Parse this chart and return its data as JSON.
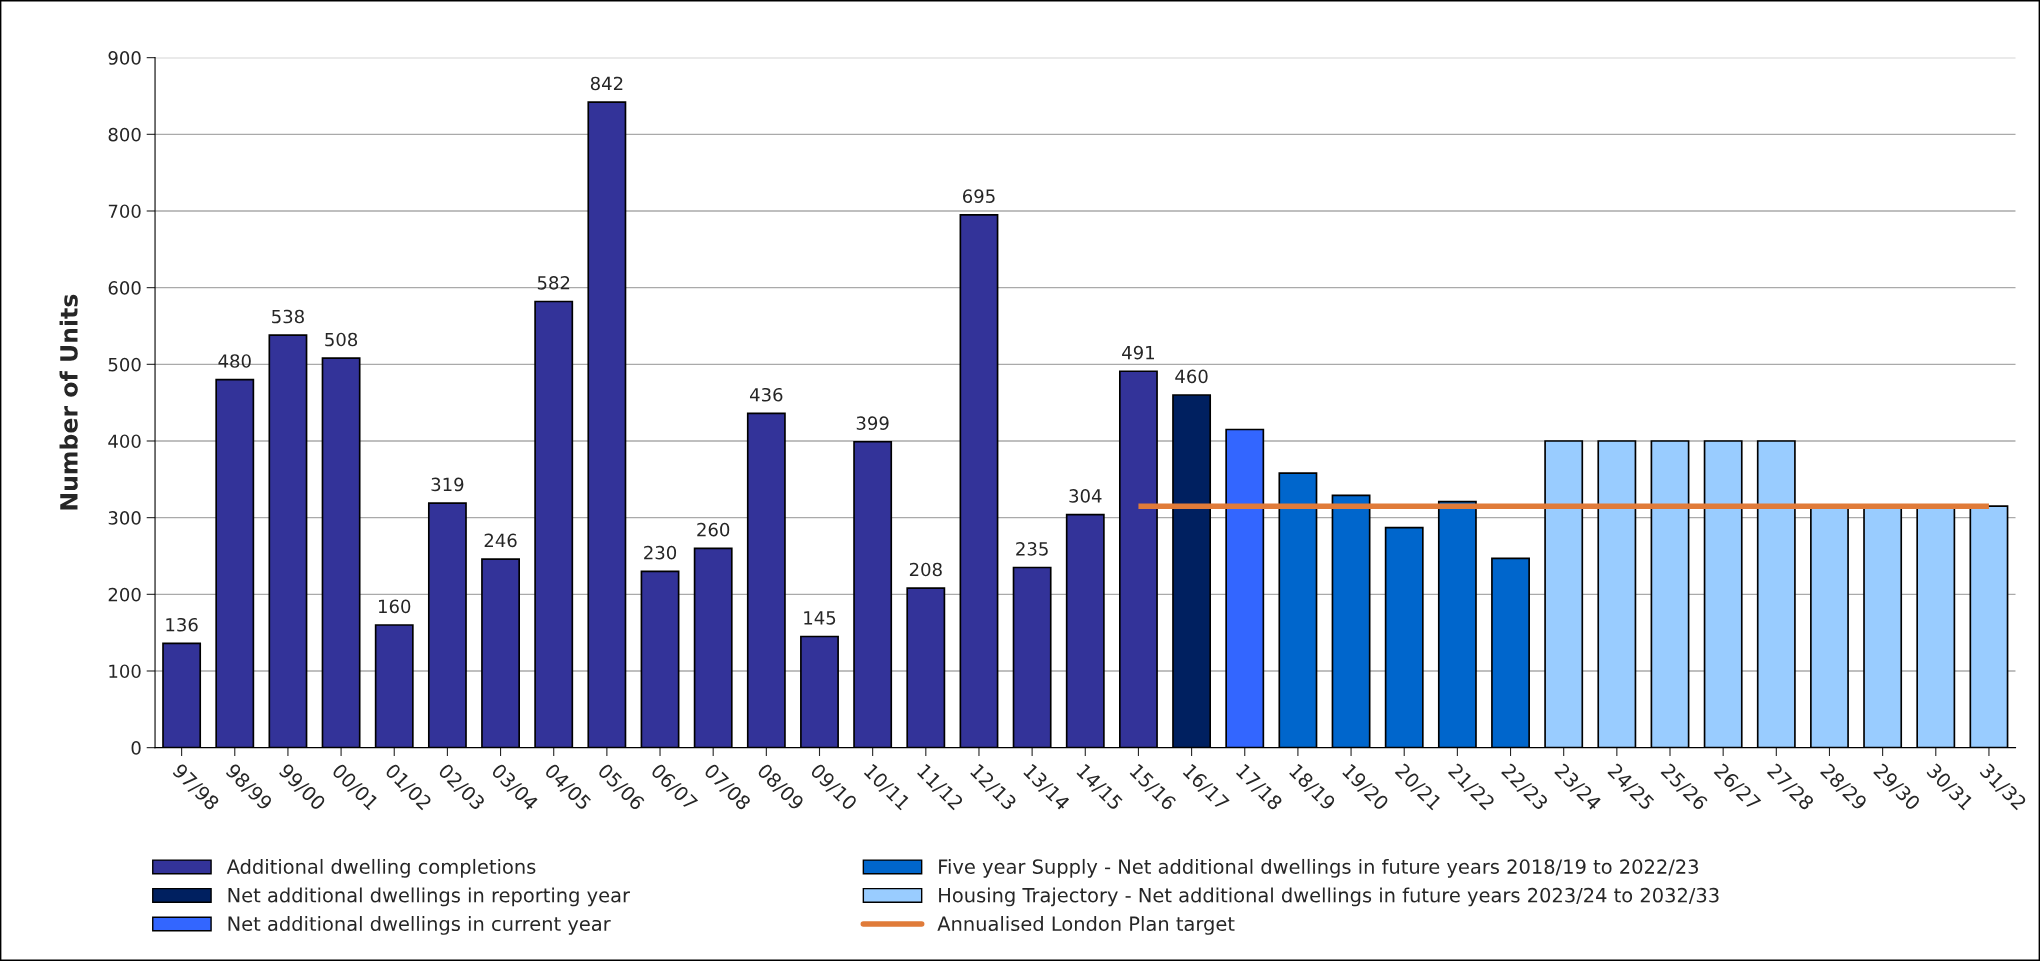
{
  "chart_data": {
    "type": "bar",
    "ylabel": "Number of Units",
    "categories": [
      "97/98",
      "98/99",
      "99/00",
      "00/01",
      "01/02",
      "02/03",
      "03/04",
      "04/05",
      "05/06",
      "06/07",
      "07/08",
      "08/09",
      "09/10",
      "10/11",
      "11/12",
      "12/13",
      "13/14",
      "14/15",
      "15/16",
      "16/17",
      "17/18",
      "18/19",
      "19/20",
      "20/21",
      "21/22",
      "22/23",
      "23/24",
      "24/25",
      "25/26",
      "26/27",
      "27/28",
      "28/29",
      "29/30",
      "30/31",
      "31/32"
    ],
    "series": [
      {
        "name": "Additional dwelling completions",
        "color": "#333399",
        "values": [
          136,
          480,
          538,
          508,
          160,
          319,
          246,
          582,
          842,
          230,
          260,
          436,
          145,
          399,
          208,
          695,
          235,
          304,
          491,
          null,
          null,
          null,
          null,
          null,
          null,
          null,
          null,
          null,
          null,
          null,
          null,
          null,
          null,
          null,
          null
        ],
        "value_labels": [
          "136",
          "480",
          "538",
          "508",
          "160",
          "319",
          "246",
          "582",
          "842",
          "230",
          "260",
          "436",
          "145",
          "399",
          "208",
          "695",
          "235",
          "304",
          "491",
          null,
          null,
          null,
          null,
          null,
          null,
          null,
          null,
          null,
          null,
          null,
          null,
          null,
          null,
          null,
          null
        ]
      },
      {
        "name": "Net additional dwellings in reporting year",
        "color": "#002060",
        "values": [
          null,
          null,
          null,
          null,
          null,
          null,
          null,
          null,
          null,
          null,
          null,
          null,
          null,
          null,
          null,
          null,
          null,
          null,
          null,
          460,
          null,
          null,
          null,
          null,
          null,
          null,
          null,
          null,
          null,
          null,
          null,
          null,
          null,
          null,
          null
        ],
        "value_labels": [
          null,
          null,
          null,
          null,
          null,
          null,
          null,
          null,
          null,
          null,
          null,
          null,
          null,
          null,
          null,
          null,
          null,
          null,
          null,
          "460",
          null,
          null,
          null,
          null,
          null,
          null,
          null,
          null,
          null,
          null,
          null,
          null,
          null,
          null,
          null
        ]
      },
      {
        "name": "Net additional dwellings in current year",
        "color": "#3366ff",
        "values": [
          null,
          null,
          null,
          null,
          null,
          null,
          null,
          null,
          null,
          null,
          null,
          null,
          null,
          null,
          null,
          null,
          null,
          null,
          null,
          null,
          415,
          null,
          null,
          null,
          null,
          null,
          null,
          null,
          null,
          null,
          null,
          null,
          null,
          null,
          null
        ]
      },
      {
        "name": "Five year Supply - Net additional dwellings in future years 2018/19 to 2022/23",
        "color": "#0066cc",
        "values": [
          null,
          null,
          null,
          null,
          null,
          null,
          null,
          null,
          null,
          null,
          null,
          null,
          null,
          null,
          null,
          null,
          null,
          null,
          null,
          null,
          null,
          358,
          329,
          287,
          321,
          247,
          null,
          null,
          null,
          null,
          null,
          null,
          null,
          null,
          null
        ]
      },
      {
        "name": "Housing Trajectory - Net additional dwellings in future years 2023/24 to 2032/33",
        "color": "#99ccff",
        "values": [
          null,
          null,
          null,
          null,
          null,
          null,
          null,
          null,
          null,
          null,
          null,
          null,
          null,
          null,
          null,
          null,
          null,
          null,
          null,
          null,
          null,
          null,
          null,
          null,
          null,
          null,
          400,
          400,
          400,
          400,
          400,
          315,
          315,
          315,
          315
        ]
      },
      {
        "name": "Annualised London Plan target",
        "type": "line",
        "color": "#e07b39",
        "values": [
          null,
          null,
          null,
          null,
          null,
          null,
          null,
          null,
          null,
          null,
          null,
          null,
          null,
          null,
          null,
          null,
          null,
          null,
          315,
          315,
          315,
          315,
          315,
          315,
          315,
          315,
          315,
          315,
          315,
          315,
          315,
          315,
          315,
          315,
          315
        ]
      }
    ],
    "ylim": [
      0,
      900
    ],
    "yticks": [
      0,
      100,
      200,
      300,
      400,
      500,
      600,
      700,
      800,
      900
    ],
    "grid": "y",
    "legend": "bottom"
  }
}
